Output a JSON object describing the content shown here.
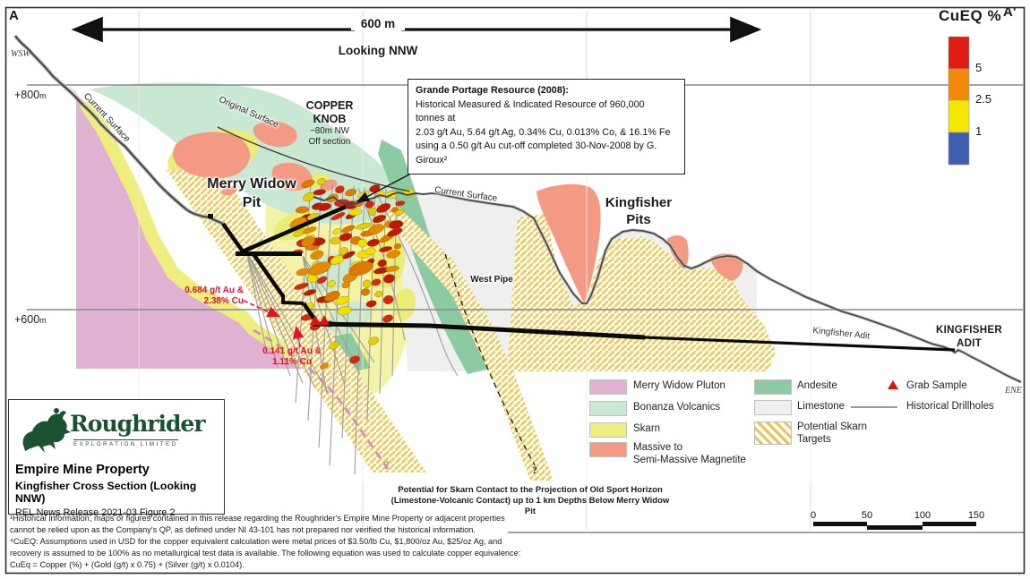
{
  "figure": {
    "corner_left": "A",
    "corner_right": "A'",
    "compass_left": "WSW",
    "compass_right": "ENE",
    "scale_arrow_label": "600 m",
    "view_label": "Looking NNW",
    "elev_upper": "+800",
    "elev_lower": "+600",
    "elev_unit": "m"
  },
  "cueq_legend": {
    "title": "CuEQ %",
    "ticks": [
      "5",
      "2.5",
      "1"
    ],
    "colors": [
      "#e11b0f",
      "#f0890a",
      "#f5e600",
      "#3f5fae"
    ]
  },
  "labels": {
    "copper_knob_1": "COPPER",
    "copper_knob_2": "KNOB",
    "copper_knob_3": "~80m NW",
    "copper_knob_4": "Off section",
    "merry_widow_1": "Merry Widow",
    "merry_widow_2": "Pit",
    "kingfisher_1": "Kingfisher",
    "kingfisher_2": "Pits",
    "west_pipe": "West Pipe",
    "current_surface_left": "Current Surface",
    "current_surface_mid": "Current Surface",
    "original_surface": "Original Surface",
    "kingfisher_adit_inline": "Kingfisher Adit",
    "kingfisher_adit_1": "KINGFISHER",
    "kingfisher_adit_2": "ADIT",
    "query_pink": "?",
    "query_black": "?"
  },
  "resource_box": {
    "line1": "Grande Portage Resource (2008):",
    "line2": "Historical Measured & Indicated Resource of 960,000",
    "line3": "tonnes at",
    "line4": "2.03 g/t Au, 5.64 g/t Ag, 0.34% Cu, 0.013% Co, & 16.1% Fe",
    "line5": "using a 0.50 g/t Au cut-off completed 30-Nov-2008 by G.",
    "line6": "Giroux²"
  },
  "samples": {
    "s1_line1": "0.684 g/t Au &",
    "s1_line2": "2.38% Cu",
    "s2_line1": "0.141 g/t Au &",
    "s2_line2": "1.11% Cu",
    "color": "#e8112d"
  },
  "skarn_note": {
    "line1": "Potential for Skarn Contact to the Projection of Old Sport Horizon",
    "line2": "(Limestone-Volcanic Contact) up to 1 km Depths Below Merry Widow Pit"
  },
  "legend": {
    "items": [
      {
        "label": "Merry Widow Pluton",
        "color": "#e0b2d2",
        "type": "swatch"
      },
      {
        "label": "Bonanza Volcanics",
        "color": "#c9e8d3",
        "type": "swatch"
      },
      {
        "label": "Skarn",
        "color": "#edee7d",
        "type": "swatch"
      },
      {
        "label": "Massive to",
        "label2": "Semi-Massive Magnetite",
        "color": "#f49a84",
        "type": "swatch"
      },
      {
        "label": "Andesite",
        "color": "#8ccaa1",
        "type": "swatch"
      },
      {
        "label": "Limestone",
        "color": "#efefed",
        "type": "swatch"
      },
      {
        "label": "Potential Skarn",
        "label2": "Targets",
        "color": "#e8c25a",
        "type": "hatch"
      },
      {
        "label": "Grab Sample",
        "color": "#df1411",
        "type": "triangle"
      },
      {
        "label": "Historical Drillholes",
        "color": "#999999",
        "type": "line"
      }
    ]
  },
  "scale_bar": {
    "ticks": [
      "0",
      "50",
      "100",
      "150"
    ]
  },
  "title_block": {
    "brand": "Roughrider",
    "brand_sub": "EXPLORATION LIMITED",
    "property": "Empire Mine Property",
    "section": "Kingfisher Cross Section (Looking NNW)",
    "release": "REL News Release 2021-03 Figure 2"
  },
  "footnotes": {
    "line1": "¹Historical information, maps or figures contained in this release regarding the Roughrider's Empire Mine Property or adjacent properties",
    "line2": "cannot be relied upon as the Company's QP, as defined under NI 43-101 has not prepared nor verified the historical information.",
    "line3": "⁴CuEQ: Assumptions used in USD for the copper equivalent calculation were metal prices of $3.50/lb Cu, $1,800/oz Au, $25/oz Ag, and",
    "line4": "recovery is assumed to be 100% as no metallurgical test data is available. The following equation was used to calculate copper equivalence:",
    "line5": "CuEq = Copper (%) + (Gold (g/t) x 0.75) + (Silver (g/t) x 0.0104)."
  }
}
